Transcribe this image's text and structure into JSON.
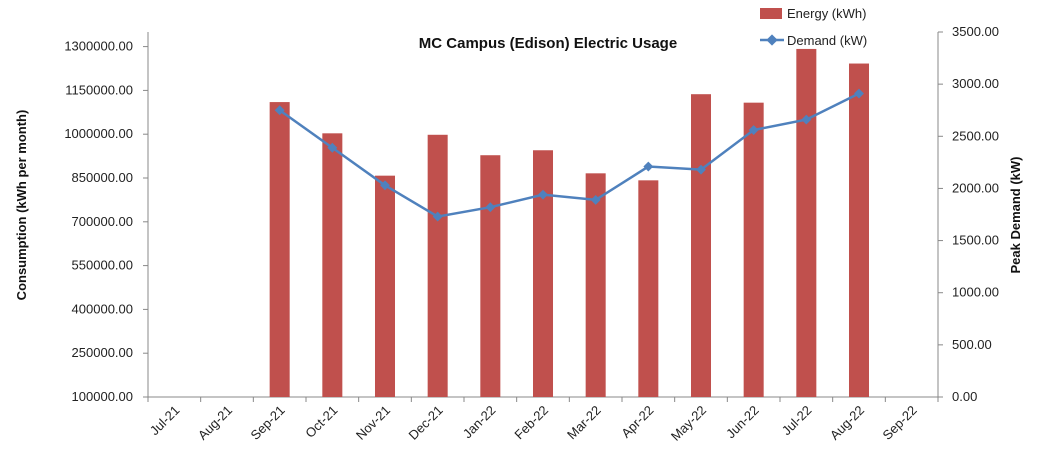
{
  "chart_data": {
    "type": "bar",
    "title": "MC Campus (Edison) Electric Usage",
    "categories": [
      "Jul-21",
      "Aug-21",
      "Sep-21",
      "Oct-21",
      "Nov-21",
      "Dec-21",
      "Jan-22",
      "Feb-22",
      "Mar-22",
      "Apr-22",
      "May-22",
      "Jun-22",
      "Jul-22",
      "Aug-22",
      "Sep-22"
    ],
    "series": [
      {
        "name": "Energy (kWh)",
        "type": "bar",
        "axis": "left",
        "color": "#c0504d",
        "values": [
          null,
          null,
          1110000,
          1003000,
          858000,
          998000,
          928000,
          945000,
          866000,
          842000,
          1137000,
          1108000,
          1292000,
          1242000,
          null
        ]
      },
      {
        "name": "Demand (kW)",
        "type": "line",
        "axis": "right",
        "color": "#4f81bd",
        "values": [
          null,
          null,
          2750,
          2390,
          2030,
          1730,
          1820,
          1940,
          1890,
          2210,
          2180,
          2560,
          2660,
          2910,
          null
        ]
      }
    ],
    "ylabel": "Consumption (kWh per month)",
    "y2label": "Peak Demand (kW)",
    "ylim": [
      100000,
      1350000
    ],
    "yticks": [
      "100000.00",
      "250000.00",
      "400000.00",
      "550000.00",
      "700000.00",
      "850000.00",
      "1000000.00",
      "1150000.00",
      "1300000.00"
    ],
    "y2lim": [
      0,
      3500
    ],
    "y2ticks": [
      "0.00",
      "500.00",
      "1000.00",
      "1500.00",
      "2000.00",
      "2500.00",
      "3000.00",
      "3500.00"
    ],
    "grid": false,
    "legend_position": "top-right"
  }
}
